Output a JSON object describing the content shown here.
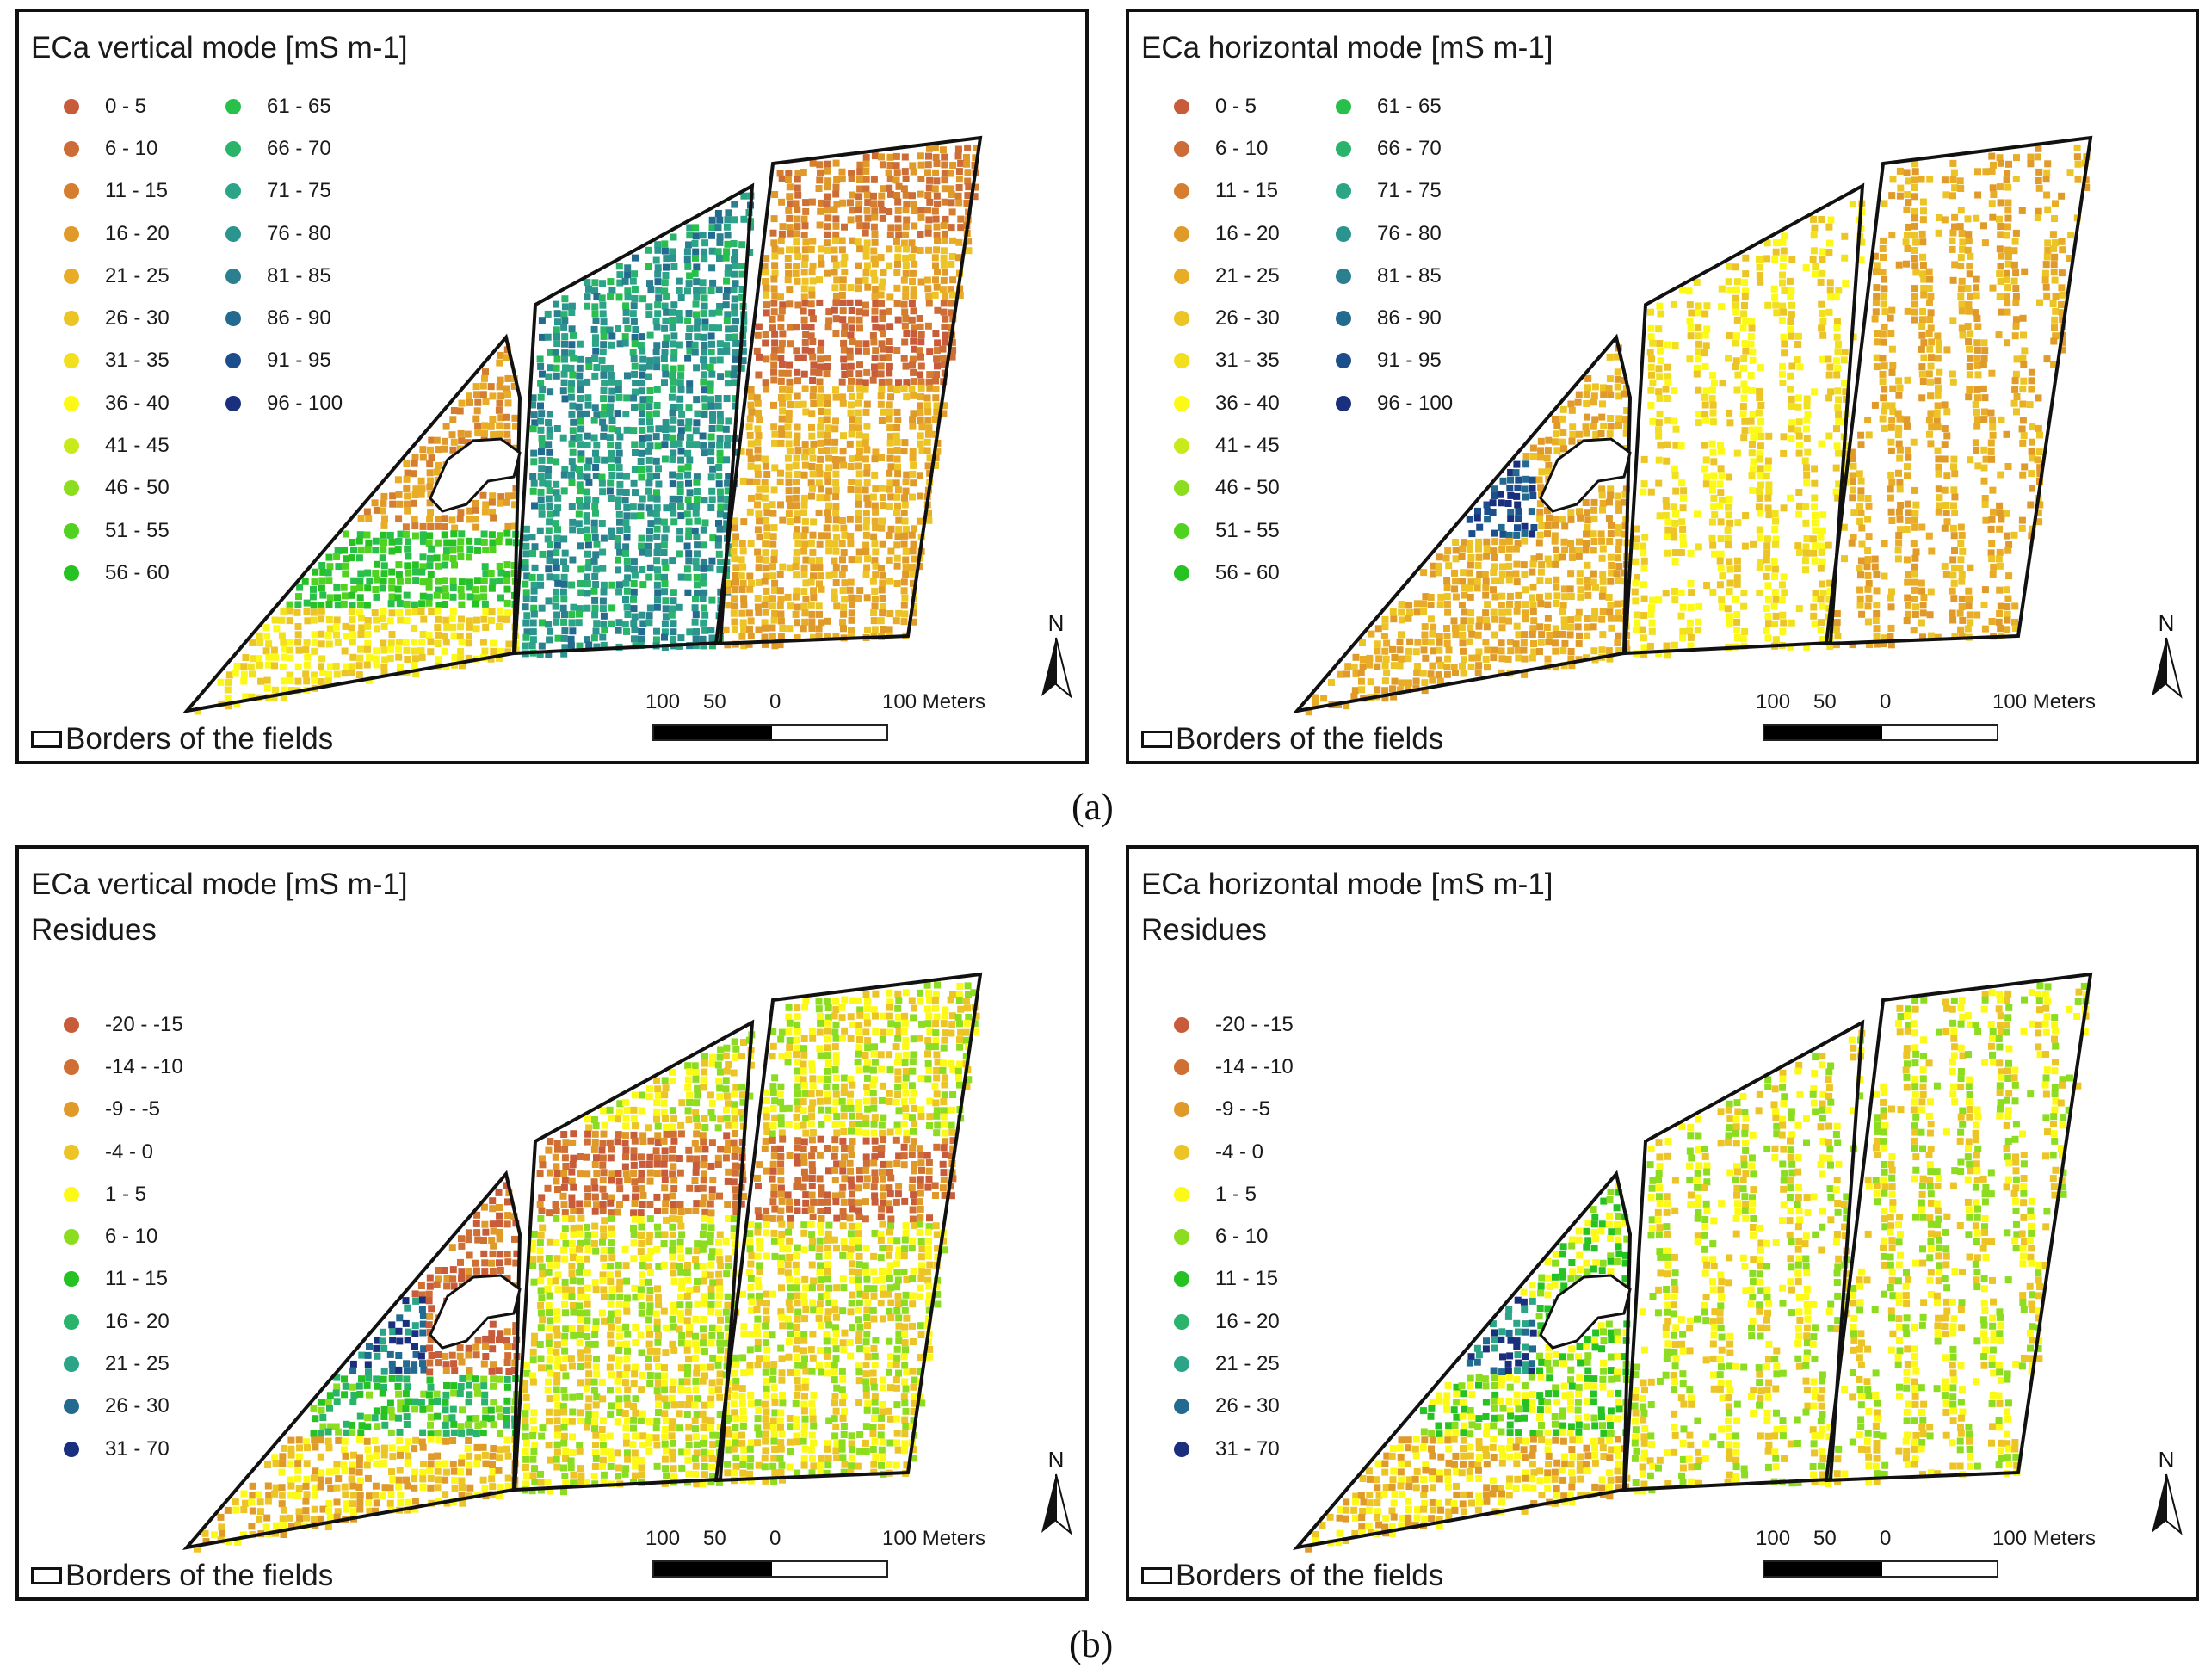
{
  "figure": {
    "caption_a": "(a)",
    "caption_b": "(b)"
  },
  "colors": {
    "field_border": "#111111",
    "scale_black": "#000000"
  },
  "legends": {
    "absolute": [
      {
        "label": "0 - 5",
        "color": "#c85c3a"
      },
      {
        "label": "6 - 10",
        "color": "#cc6c36"
      },
      {
        "label": "11 - 15",
        "color": "#d57e2f"
      },
      {
        "label": "16 - 20",
        "color": "#e09a2a"
      },
      {
        "label": "21 - 25",
        "color": "#e8ac26"
      },
      {
        "label": "26 - 30",
        "color": "#ecc426"
      },
      {
        "label": "31 - 35",
        "color": "#f2df1e"
      },
      {
        "label": "36 - 40",
        "color": "#fcf916"
      },
      {
        "label": "41 - 45",
        "color": "#c9ea1a"
      },
      {
        "label": "46 - 50",
        "color": "#8cdc1f"
      },
      {
        "label": "51 - 55",
        "color": "#4fd220"
      },
      {
        "label": "56 - 60",
        "color": "#26c223"
      },
      {
        "label": "61 - 65",
        "color": "#28c04a"
      },
      {
        "label": "66 - 70",
        "color": "#2ab46b"
      },
      {
        "label": "71 - 75",
        "color": "#2ba488"
      },
      {
        "label": "76 - 80",
        "color": "#2c948e"
      },
      {
        "label": "81 - 85",
        "color": "#2b8090"
      },
      {
        "label": "86 - 90",
        "color": "#236a90"
      },
      {
        "label": "91 - 95",
        "color": "#1d4e8c"
      },
      {
        "label": "96 - 100",
        "color": "#1a2f7d"
      }
    ],
    "residues": [
      {
        "label": "-20 - -15",
        "color": "#c85c3a"
      },
      {
        "label": "-14 - -10",
        "color": "#cf6f34"
      },
      {
        "label": "-9 - -5",
        "color": "#e09a2a"
      },
      {
        "label": "-4 - 0",
        "color": "#ecc426"
      },
      {
        "label": "1 - 5",
        "color": "#fcf916"
      },
      {
        "label": "6 - 10",
        "color": "#8cdc1f"
      },
      {
        "label": "11 - 15",
        "color": "#26c223"
      },
      {
        "label": "16 - 20",
        "color": "#2ab46b"
      },
      {
        "label": "21 - 25",
        "color": "#2ba488"
      },
      {
        "label": "26 - 30",
        "color": "#236a90"
      },
      {
        "label": "31 - 70",
        "color": "#1a2f7d"
      }
    ]
  },
  "panels": [
    {
      "title": "ECa vertical mode  [mS m-1]",
      "subtitle": "",
      "legend": "absolute",
      "pattern": "va"
    },
    {
      "title": "ECa horizontal mode  [mS m-1]",
      "subtitle": "",
      "legend": "absolute",
      "pattern": "ha"
    },
    {
      "title": "ECa vertical mode  [mS m-1]",
      "subtitle": "Residues",
      "legend": "residues",
      "pattern": "vb"
    },
    {
      "title": "ECa horizontal mode  [mS m-1]",
      "subtitle": "Residues",
      "legend": "residues",
      "pattern": "hb"
    }
  ],
  "map_common": {
    "borders_label": "Borders of the fields",
    "north_label": "N",
    "scale_labels": [
      "100",
      "50",
      "0",
      "100 Meters"
    ]
  }
}
